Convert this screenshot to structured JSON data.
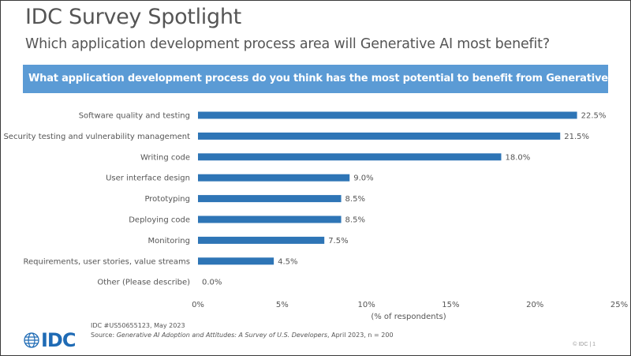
{
  "header": {
    "title": "IDC Survey Spotlight",
    "subtitle": "Which application development process area will Generative AI most benefit?"
  },
  "banner": {
    "question": "What application development process do you think has the most potential to benefit from Generative AI?"
  },
  "chart_data": {
    "type": "bar",
    "orientation": "horizontal",
    "categories": [
      "Software quality and testing",
      "Security testing and vulnerability management",
      "Writing code",
      "User interface design",
      "Prototyping",
      "Deploying code",
      "Monitoring",
      "Requirements, user stories, value streams",
      "Other (Please describe)"
    ],
    "values": [
      22.5,
      21.5,
      18.0,
      9.0,
      8.5,
      8.5,
      7.5,
      4.5,
      0.0
    ],
    "data_labels": [
      "22.5%",
      "21.5%",
      "18.0%",
      "9.0%",
      "8.5%",
      "8.5%",
      "7.5%",
      "4.5%",
      "0.0%"
    ],
    "xlim": [
      0,
      25
    ],
    "xticks": [
      0,
      5,
      10,
      15,
      20,
      25
    ],
    "xtick_labels": [
      "0%",
      "5%",
      "10%",
      "15%",
      "20%",
      "25%"
    ],
    "xlabel": "(% of respondents)",
    "grid": false,
    "bar_color": "#2e75b6"
  },
  "footer": {
    "doc_id": "IDC #US50655123,   May 2023",
    "source_prefix": "Source: ",
    "source_title": "Generative AI Adoption and Attitudes: A Survey of U.S. Developers",
    "source_suffix": ", April 2023,  n = 200",
    "logo_text": "IDC",
    "copyright": "© IDC  |  1"
  },
  "colors": {
    "brand_blue": "#1f6bb5",
    "banner": "#5b9bd5"
  }
}
